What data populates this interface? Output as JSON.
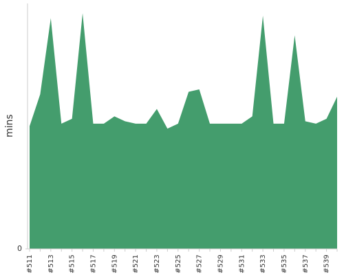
{
  "chart_data": {
    "type": "area",
    "y_label": "mins",
    "categories": [
      "#511",
      null,
      "#513",
      null,
      "#515",
      null,
      "#517",
      null,
      "#519",
      null,
      "#521",
      null,
      "#523",
      null,
      "#525",
      null,
      "#527",
      null,
      "#529",
      null,
      "#531",
      null,
      "#533",
      null,
      "#535",
      null,
      "#537",
      null,
      "#539",
      null
    ],
    "values": [
      50,
      63,
      94,
      51,
      53,
      96,
      51,
      51,
      54,
      52,
      51,
      51,
      57,
      49,
      51,
      64,
      65,
      51,
      51,
      51,
      51,
      54,
      95,
      51,
      51,
      87,
      52,
      51,
      53,
      62
    ],
    "color": "#449d6d",
    "ylim": [
      0,
      100
    ],
    "yticks": [
      0
    ]
  }
}
